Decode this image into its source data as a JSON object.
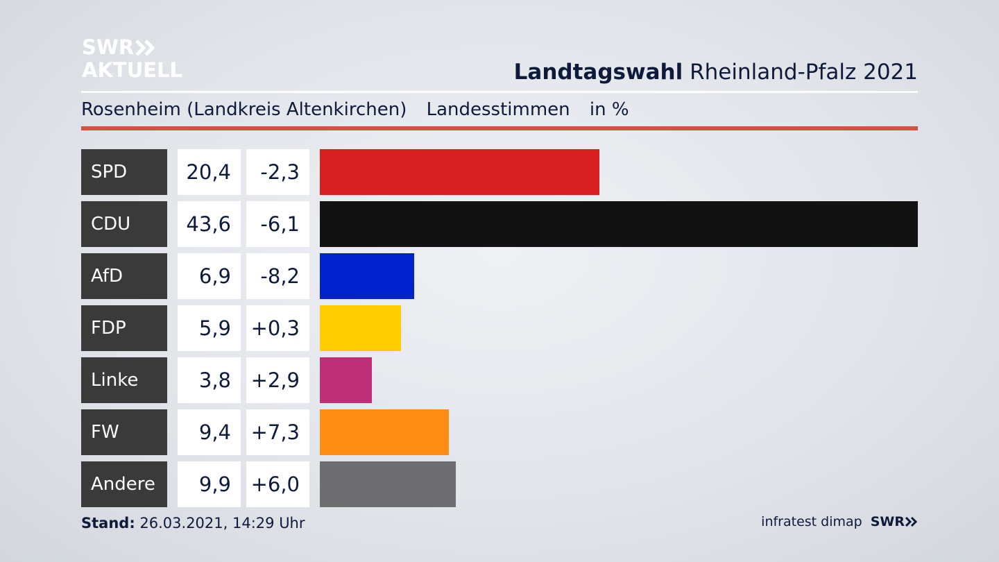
{
  "brand": {
    "logo_line1": "SWR",
    "logo_line2": "AKTUELL",
    "chevron_icon": "double-chevron-right-icon"
  },
  "header": {
    "title_bold": "Landtagswahl",
    "title_regular": "Rheinland-Pfalz 2021"
  },
  "subheader": {
    "region": "Rosenheim (Landkreis Altenkirchen)",
    "vote_type": "Landesstimmen",
    "unit": "in %"
  },
  "colors": {
    "accent_rule": "#d3533f",
    "party_cell": "#3a3a3a"
  },
  "chart_data": {
    "type": "bar",
    "orientation": "horizontal",
    "categories": [
      "SPD",
      "CDU",
      "AfD",
      "FDP",
      "Linke",
      "FW",
      "Andere"
    ],
    "values": [
      20.4,
      43.6,
      6.9,
      5.9,
      3.8,
      9.4,
      9.9
    ],
    "value_labels": [
      "20,4",
      "43,6",
      "6,9",
      "5,9",
      "3,8",
      "9,4",
      "9,9"
    ],
    "diff_labels": [
      "-2,3",
      "-6,1",
      "-8,2",
      "+0,3",
      "+2,9",
      "+7,3",
      "+6,0"
    ],
    "bar_colors": [
      "#d61f21",
      "#121212",
      "#0022cc",
      "#ffcc00",
      "#be3075",
      "#ff8c14",
      "#6e6e70"
    ],
    "xlim": [
      0,
      43.6
    ],
    "grid": false,
    "legend": "none"
  },
  "footer": {
    "stand_label": "Stand:",
    "stand_value": "26.03.2021, 14:29 Uhr",
    "source": "infratest dimap",
    "brand_small": "SWR"
  }
}
